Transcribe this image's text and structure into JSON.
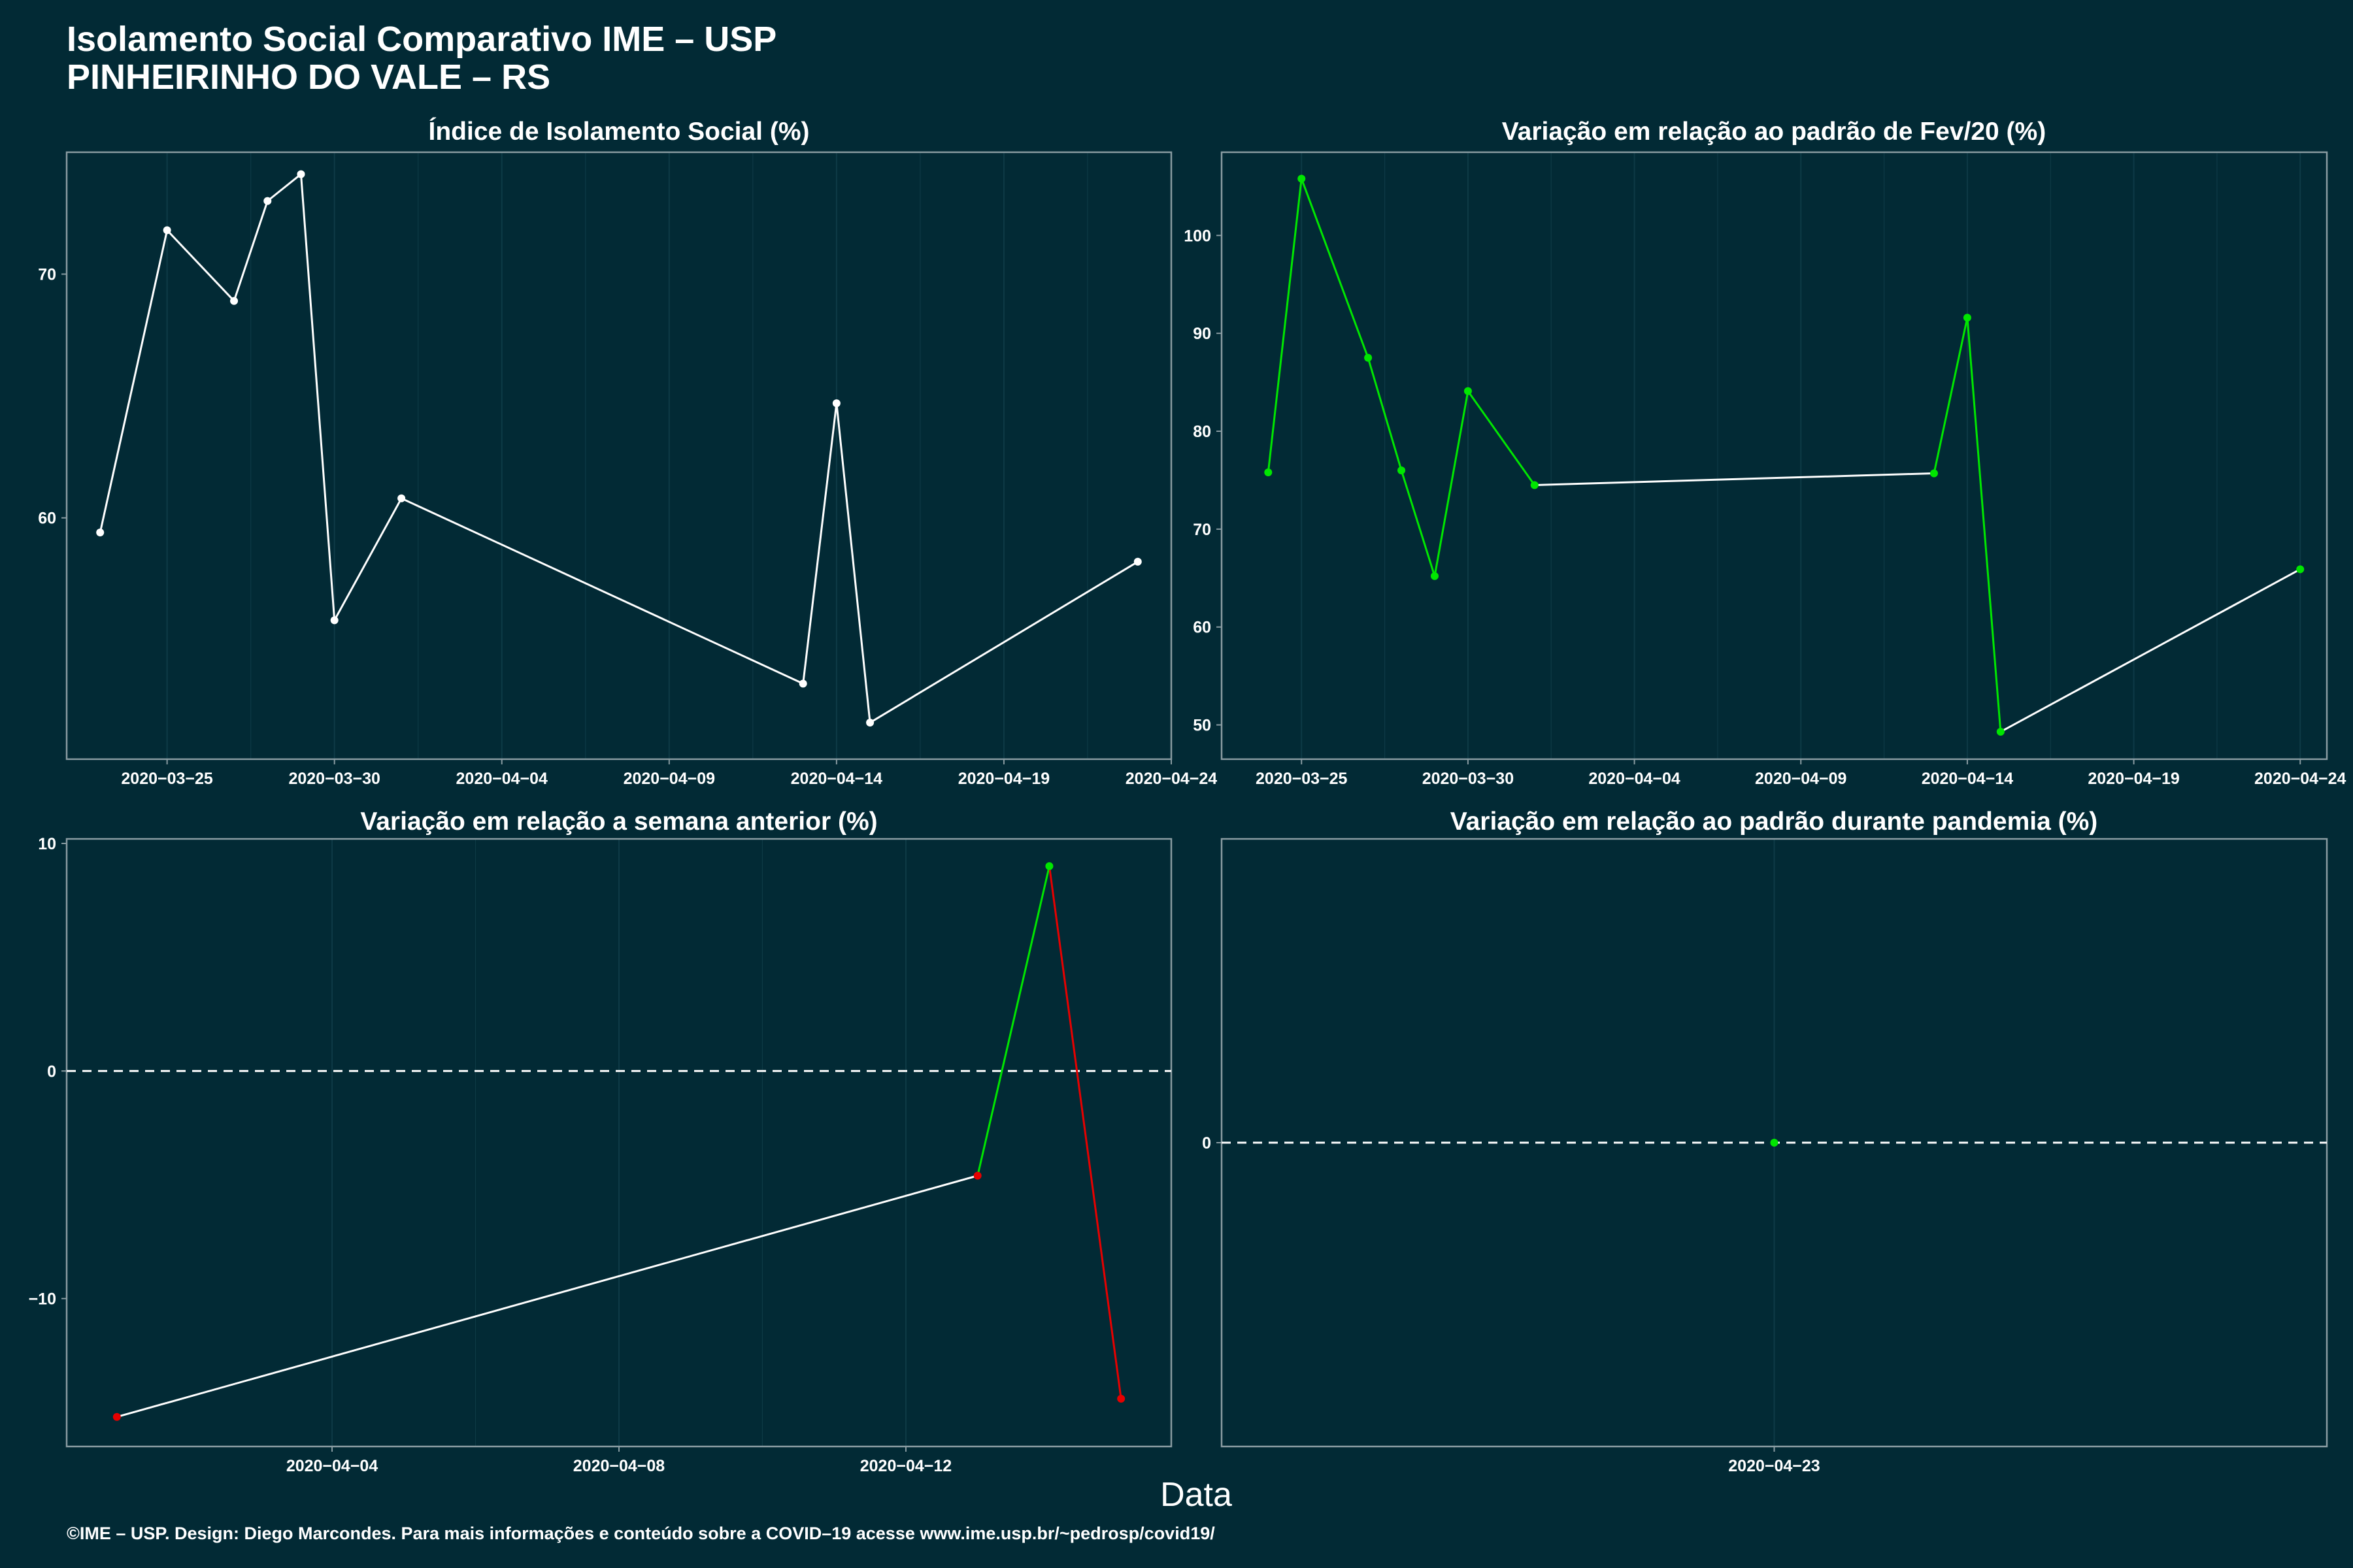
{
  "figure": {
    "title_line1": "Isolamento Social Comparativo IME – USP",
    "title_line2": "PINHEIRINHO DO VALE – RS",
    "xlabel": "Data",
    "caption": "©IME – USP. Design: Diego Marcondes. Para mais informações e conteúdo sobre a COVID–19 acesse www.ime.usp.br/~pedrosp/covid19/"
  },
  "colors": {
    "background": "#022a35",
    "frame": "#8a9ca2",
    "grid": "#0e3a46",
    "line": "#ffffff",
    "up": "#00e600",
    "down": "#e60000",
    "text": "#ffffff"
  },
  "chart_data": [
    {
      "type": "line",
      "title": "Índice de Isolamento Social (%)",
      "x": [
        "2020-03-23",
        "2020-03-25",
        "2020-03-27",
        "2020-03-28",
        "2020-03-29",
        "2020-03-30",
        "2020-04-01",
        "2020-04-13",
        "2020-04-14",
        "2020-04-15",
        "2020-04-23"
      ],
      "y": [
        59.4,
        71.8,
        68.9,
        73.0,
        74.1,
        55.8,
        60.8,
        53.2,
        64.7,
        51.6,
        58.2
      ],
      "xlim": [
        "2020-03-22",
        "2020-04-24"
      ],
      "ylim": [
        50.1,
        75.0
      ],
      "xticks": [
        "2020-03-25",
        "2020-03-30",
        "2020-04-04",
        "2020-04-09",
        "2020-04-14",
        "2020-04-19",
        "2020-04-24"
      ],
      "yticks": [
        60,
        70
      ],
      "colored_segments": false
    },
    {
      "type": "line",
      "title": "Variação em relação ao padrão de Fev/20 (%)",
      "x": [
        "2020-03-24",
        "2020-03-25",
        "2020-03-27",
        "2020-03-28",
        "2020-03-29",
        "2020-03-30",
        "2020-04-01",
        "2020-04-13",
        "2020-04-14",
        "2020-04-15",
        "2020-04-24"
      ],
      "y": [
        75.8,
        105.8,
        87.5,
        76.0,
        65.2,
        84.1,
        74.5,
        75.7,
        91.6,
        49.3,
        65.9
      ],
      "xlim": [
        "2020-03-22.6",
        "2020-04-24.8"
      ],
      "ylim": [
        46.5,
        108.5
      ],
      "xticks": [
        "2020-03-25",
        "2020-03-30",
        "2020-04-04",
        "2020-04-09",
        "2020-04-14",
        "2020-04-19",
        "2020-04-24"
      ],
      "yticks": [
        50,
        60,
        70,
        80,
        90,
        100
      ],
      "colored_segments": true
    },
    {
      "type": "line",
      "title": "Variação em relação a semana anterior (%)",
      "x": [
        "2020-04-01",
        "2020-04-13",
        "2020-04-14",
        "2020-04-15"
      ],
      "y": [
        -15.2,
        -4.6,
        9.0,
        -14.4
      ],
      "xlim": [
        "2020-03-31.3",
        "2020-04-15.7"
      ],
      "ylim": [
        -16.5,
        10.2
      ],
      "xticks": [
        "2020-04-04",
        "2020-04-08",
        "2020-04-12"
      ],
      "yticks": [
        -10,
        0,
        10
      ],
      "zero_line": true,
      "colored_segments": true
    },
    {
      "type": "scatter",
      "title": "Variação em relação ao padrão durante pandemia (%)",
      "x": [
        "2020-04-23"
      ],
      "y": [
        0
      ],
      "xlim": [
        "2020-04-22",
        "2020-04-24"
      ],
      "ylim": [
        -1,
        1
      ],
      "xticks": [
        "2020-04-23"
      ],
      "yticks": [
        0
      ],
      "zero_line": true,
      "colored_segments": true
    }
  ]
}
